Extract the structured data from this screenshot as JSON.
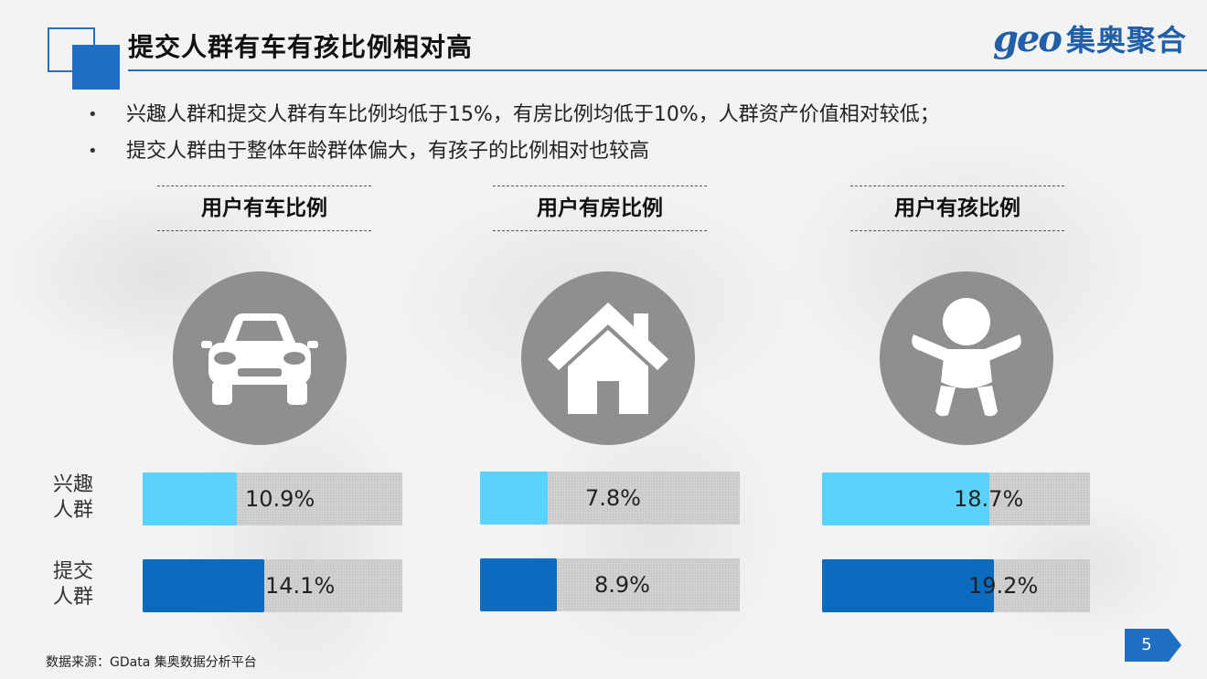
{
  "header": {
    "title": "提交人群有车有孩比例相对高",
    "logo_mark": "geo",
    "logo_text": "集奥聚合"
  },
  "bullets": [
    "兴趣人群和提交人群有车比例均低于15%，有房比例均低于10%，人群资产价值相对较低；",
    "提交人群由于整体年龄群体偏大，有孩子的比例相对也较高"
  ],
  "row_labels": {
    "interest": [
      "兴趣",
      "人群"
    ],
    "submit": [
      "提交",
      "人群"
    ]
  },
  "colors": {
    "accent": "#1f6fc5",
    "interest_bar": "#5ad2fb",
    "submit_bar": "#0a6bbf",
    "icon_circle": "#8f8f8f"
  },
  "panels": [
    {
      "title": "用户有车比例",
      "icon": "car-icon",
      "interest_label": "10.9%",
      "submit_label": "14.1%"
    },
    {
      "title": "用户有房比例",
      "icon": "house-icon",
      "interest_label": "7.8%",
      "submit_label": "8.9%"
    },
    {
      "title": "用户有孩比例",
      "icon": "baby-icon",
      "interest_label": "18.7%",
      "submit_label": "19.2%"
    }
  ],
  "chart_data": {
    "type": "bar",
    "categories": [
      "用户有车比例",
      "用户有房比例",
      "用户有孩比例"
    ],
    "series": [
      {
        "name": "兴趣人群",
        "values": [
          10.9,
          7.8,
          18.7
        ]
      },
      {
        "name": "提交人群",
        "values": [
          14.1,
          8.9,
          19.2
        ]
      }
    ],
    "unit": "%"
  },
  "footer": {
    "source": "数据来源：GData  集奥数据分析平台",
    "page_number": "5"
  }
}
